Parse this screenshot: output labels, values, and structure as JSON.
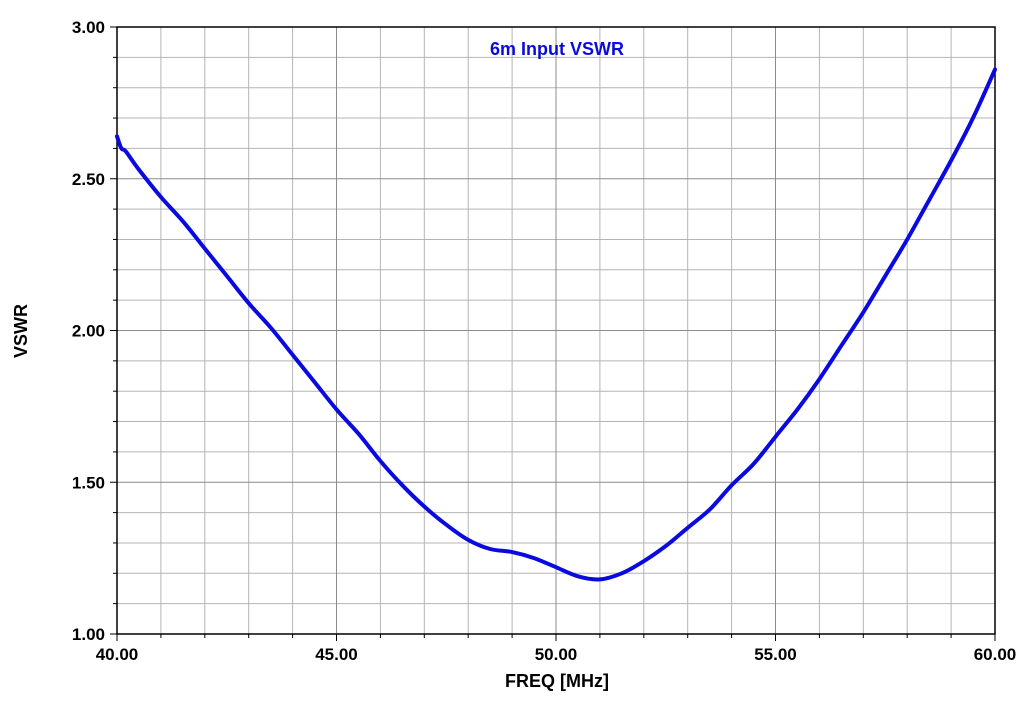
{
  "chart_data": {
    "type": "line",
    "title": "6m Input VSWR",
    "xlabel": "FREQ [MHz]",
    "ylabel": "VSWR",
    "xlim": [
      40,
      60
    ],
    "ylim": [
      1,
      3
    ],
    "x_ticks": [
      "40.00",
      "45.00",
      "50.00",
      "55.00",
      "60.00"
    ],
    "y_ticks": [
      "1.00",
      "1.50",
      "2.00",
      "2.50",
      "3.00"
    ],
    "grid": true,
    "colors": {
      "series": "#0a0ae0",
      "title": "#0a0ae0",
      "grid": "#b4b4b4"
    },
    "series": [
      {
        "x": [
          40.0,
          40.1,
          40.2,
          40.5,
          41.0,
          41.5,
          42.0,
          42.5,
          43.0,
          43.5,
          44.0,
          44.5,
          45.0,
          45.5,
          46.0,
          46.5,
          47.0,
          47.5,
          48.0,
          48.5,
          49.0,
          49.5,
          50.0,
          50.5,
          51.0,
          51.5,
          52.0,
          52.5,
          53.0,
          53.5,
          54.0,
          54.5,
          55.0,
          55.5,
          56.0,
          56.5,
          57.0,
          57.5,
          58.0,
          58.5,
          59.0,
          59.5,
          60.0
        ],
        "y": [
          2.64,
          2.6,
          2.59,
          2.53,
          2.44,
          2.36,
          2.27,
          2.18,
          2.09,
          2.01,
          1.92,
          1.83,
          1.74,
          1.66,
          1.57,
          1.49,
          1.42,
          1.36,
          1.31,
          1.28,
          1.27,
          1.25,
          1.22,
          1.19,
          1.18,
          1.2,
          1.24,
          1.29,
          1.35,
          1.41,
          1.49,
          1.56,
          1.65,
          1.74,
          1.84,
          1.95,
          2.06,
          2.18,
          2.3,
          2.43,
          2.56,
          2.7,
          2.86
        ]
      }
    ]
  }
}
